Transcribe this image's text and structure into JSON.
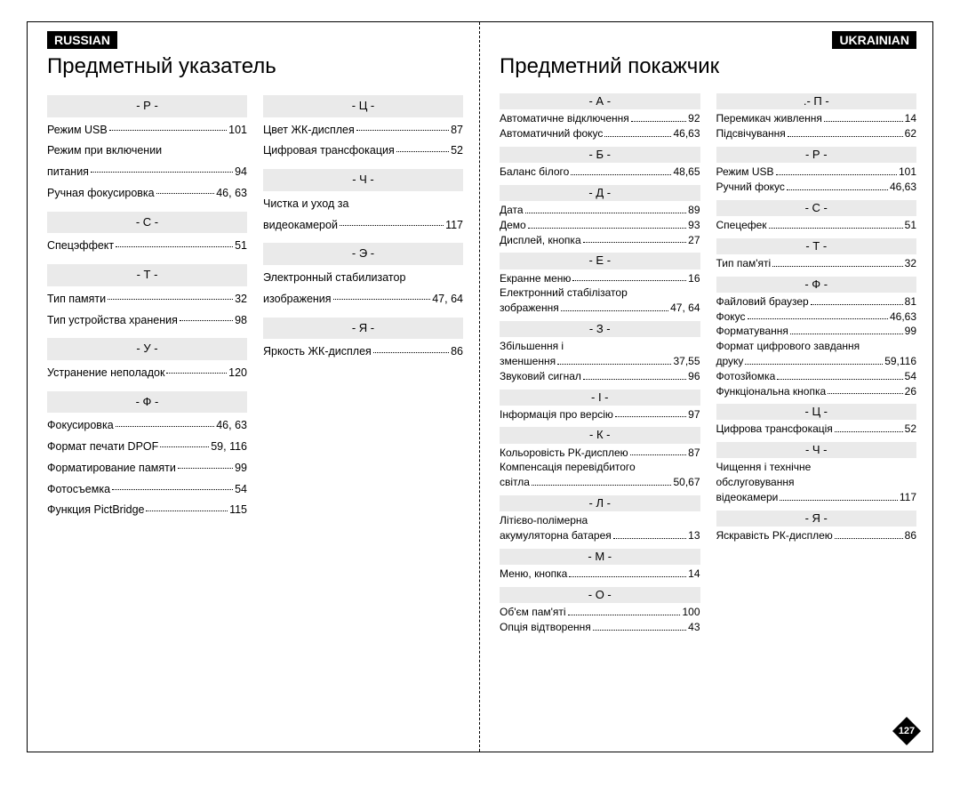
{
  "page_number": "127",
  "left": {
    "lang": "RUSSIAN",
    "title": "Предметный указатель",
    "columns": [
      [
        {
          "letter": "- Р -"
        },
        {
          "text": "Режим USB",
          "page": "101"
        },
        {
          "cont": "Режим при включении"
        },
        {
          "text": "питания",
          "page": "94"
        },
        {
          "text": "Ручная фокусировка",
          "page": "46, 63"
        },
        {
          "letter": "- С -"
        },
        {
          "text": "Спецэффект",
          "page": "51"
        },
        {
          "letter": "- Т -"
        },
        {
          "text": "Тип памяти",
          "page": "32"
        },
        {
          "text": "Тип устройства хранения",
          "page": "98"
        },
        {
          "letter": "- У -"
        },
        {
          "text": "Устранение неполадок",
          "page": "120"
        },
        {
          "letter": "- Ф -"
        },
        {
          "text": "Фокусировка",
          "page": "46, 63"
        },
        {
          "text": "Формат печати DPOF",
          "page": "59, 116"
        },
        {
          "text": "Форматирование памяти",
          "page": "99"
        },
        {
          "text": "Фотосъемка",
          "page": "54"
        },
        {
          "text": "Функция PictBridge",
          "page": "115"
        }
      ],
      [
        {
          "letter": "- Ц -"
        },
        {
          "text": "Цвет ЖК-дисплея",
          "page": "87"
        },
        {
          "text": "Цифровая трансфокация",
          "page": "52"
        },
        {
          "letter": "- Ч -"
        },
        {
          "cont": "Чистка и уход за"
        },
        {
          "text": "видеокамерой",
          "page": "117"
        },
        {
          "letter": "- Э -"
        },
        {
          "cont": "Электронный стабилизатор"
        },
        {
          "text": "изображения",
          "page": "47, 64"
        },
        {
          "letter": "- Я -"
        },
        {
          "text": "Яркость ЖК-дисплея",
          "page": "86"
        }
      ]
    ]
  },
  "right": {
    "lang": "UKRAINIAN",
    "title": "Предметний покажчик",
    "columns": [
      [
        {
          "letter": "- А -"
        },
        {
          "text": "Автоматичне відключення",
          "page": "92"
        },
        {
          "text": "Автоматичний фокус",
          "page": "46,63"
        },
        {
          "letter": "- Б -"
        },
        {
          "text": "Баланс білого",
          "page": "48,65"
        },
        {
          "letter": "- Д -"
        },
        {
          "text": "Дата",
          "page": "89"
        },
        {
          "text": "Демо",
          "page": "93"
        },
        {
          "text": "Дисплей, кнопка",
          "page": "27"
        },
        {
          "letter": "- Е -"
        },
        {
          "text": "Екранне меню",
          "page": "16"
        },
        {
          "cont": "Електронний стабілізатор"
        },
        {
          "text": "зображення",
          "page": "47, 64"
        },
        {
          "letter": "- З -"
        },
        {
          "cont": "Збільшення і"
        },
        {
          "text": "зменшення",
          "page": "37,55"
        },
        {
          "text": "Звуковий сигнал",
          "page": "96"
        },
        {
          "letter": "- І -"
        },
        {
          "text": "Інформація про версію",
          "page": "97"
        },
        {
          "letter": "- К -"
        },
        {
          "text": "Кольоровість РК-дисплею",
          "page": "87"
        },
        {
          "cont": "Компенсація перевідбитого"
        },
        {
          "text": "світла",
          "page": "50,67"
        },
        {
          "letter": "- Л -"
        },
        {
          "cont": "Літієво-полімерна"
        },
        {
          "text": "акумуляторна батарея",
          "page": "13"
        },
        {
          "letter": "- М -"
        },
        {
          "text": "Меню, кнопка",
          "page": "14"
        },
        {
          "letter": "- О -"
        },
        {
          "text": "Об'єм пам'яті",
          "page": "100"
        },
        {
          "text": "Опція відтворення",
          "page": "43"
        }
      ],
      [
        {
          "letter": ".- П -"
        },
        {
          "text": "Перемикач живлення",
          "page": "14"
        },
        {
          "text": "Підсвічування",
          "page": "62"
        },
        {
          "letter": "- Р -"
        },
        {
          "text": "Режим USB",
          "page": "101"
        },
        {
          "text": "Ручний фокус",
          "page": "46,63"
        },
        {
          "letter": "- С -"
        },
        {
          "text": "Спецефек",
          "page": "51"
        },
        {
          "letter": "- Т -"
        },
        {
          "text": "Тип пам'яті",
          "page": "32"
        },
        {
          "letter": "- Ф -"
        },
        {
          "text": "Файловий браузер",
          "page": "81"
        },
        {
          "text": "Фокус",
          "page": "46,63"
        },
        {
          "text": "Форматування",
          "page": "99"
        },
        {
          "cont": "Формат цифрового завдання"
        },
        {
          "text": "друку",
          "page": "59,116"
        },
        {
          "text": "Фотозйомка",
          "page": "54"
        },
        {
          "text": "Функціональна кнопка",
          "page": "26"
        },
        {
          "letter": "- Ц -"
        },
        {
          "text": "Цифрова трансфокація",
          "page": "52"
        },
        {
          "letter": "- Ч -"
        },
        {
          "cont": "Чищення і технічне"
        },
        {
          "cont": "обслуговування"
        },
        {
          "text": "відеокамери",
          "page": "117"
        },
        {
          "letter": "- Я -"
        },
        {
          "text": "Яскравість РК-дисплею",
          "page": "86"
        }
      ]
    ]
  }
}
